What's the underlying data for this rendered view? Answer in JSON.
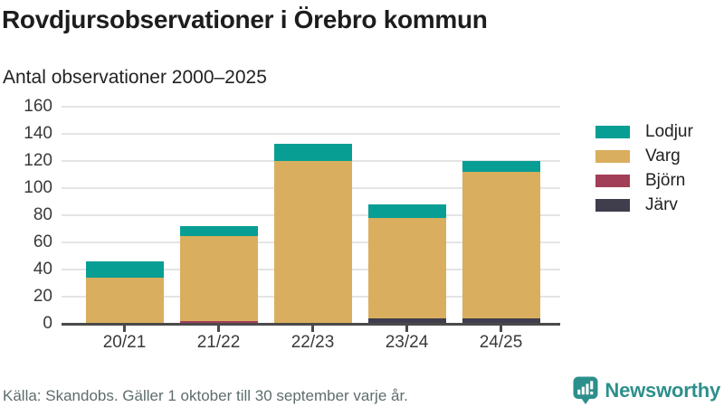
{
  "header": {
    "title": "Rovdjursobservationer i Örebro kommun",
    "subtitle": "Antal observationer 2000–2025"
  },
  "chart_data": {
    "type": "bar",
    "stacked": true,
    "title": "Rovdjursobservationer i Örebro kommun",
    "subtitle": "Antal observationer 2000–2025",
    "categories": [
      "20/21",
      "21/22",
      "22/23",
      "23/24",
      "24/25"
    ],
    "series": [
      {
        "name": "Lodjur",
        "color": "#089e94",
        "values": [
          12,
          7,
          13,
          10,
          8
        ]
      },
      {
        "name": "Varg",
        "color": "#d9ae5e",
        "values": [
          33,
          63,
          119,
          74,
          108
        ]
      },
      {
        "name": "Björn",
        "color": "#a23e58",
        "values": [
          1,
          2,
          0,
          0,
          0
        ]
      },
      {
        "name": "Järv",
        "color": "#403d4d",
        "values": [
          0,
          0,
          1,
          4,
          4
        ]
      }
    ],
    "stack_order_bottom_to_top": [
      "Järv",
      "Björn",
      "Varg",
      "Lodjur"
    ],
    "totals": [
      46,
      72,
      133,
      88,
      120
    ],
    "ylabel": "",
    "xlabel": "",
    "ylim": [
      0,
      160
    ],
    "ytick_values": [
      0,
      20,
      40,
      60,
      80,
      100,
      120,
      140,
      160
    ],
    "grid": "horizontal",
    "legend_position": "right",
    "axis_color": "#4a4a4a",
    "gridline_color": "#e4e4e4"
  },
  "footer": {
    "source": "Källa: Skandobs. Gäller 1 oktober till 30 september varje år."
  },
  "brand": {
    "name": "Newsworthy",
    "icon": "newsworthy-pin-barchart-icon",
    "color": "#2d8f8b"
  }
}
